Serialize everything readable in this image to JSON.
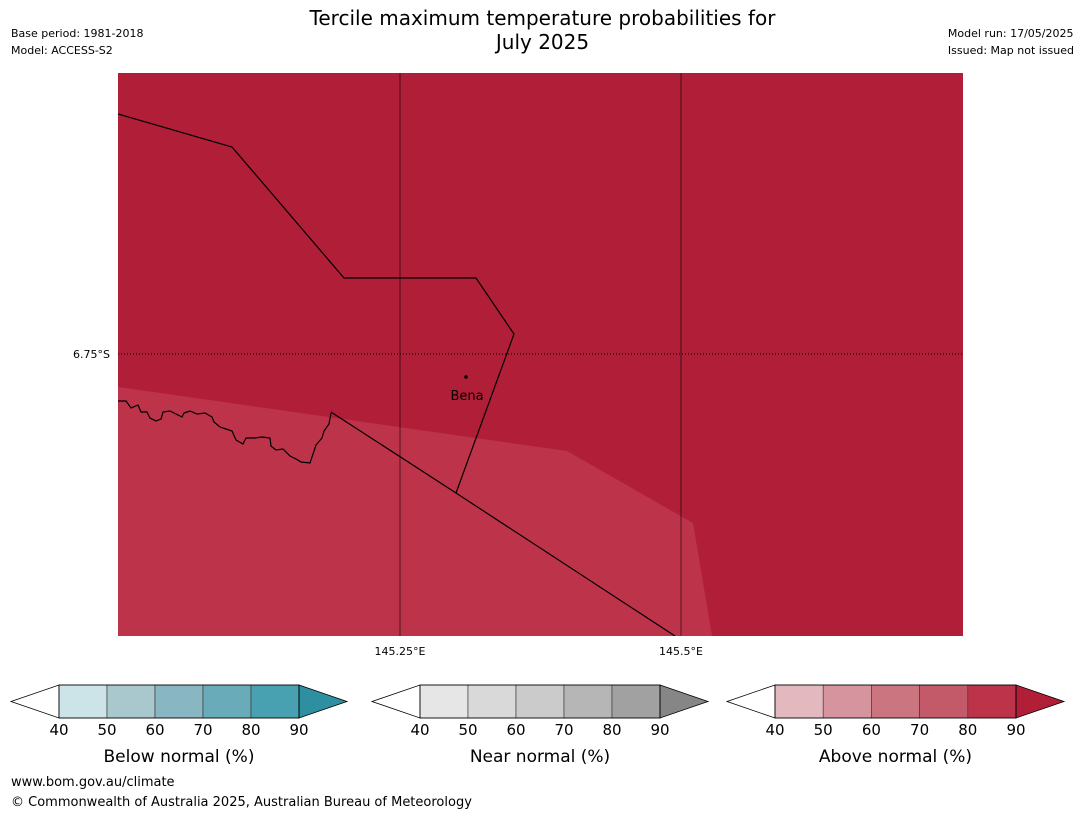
{
  "title_line1": "Tercile maximum temperature probabilities for",
  "title_line2": "July 2025",
  "meta_left": [
    "Base period: 1981-2018",
    "Model: ACCESS-S2"
  ],
  "meta_right": [
    "Model run: 17/05/2025",
    "Issued: Map not issued"
  ],
  "map": {
    "lat_label": "6.75°S",
    "lon_labels": [
      "145.25°E",
      "145.5°E"
    ],
    "place_name": "Bena",
    "colors": {
      "dark_red": "#b11e38",
      "medium_red": "#bd334a"
    }
  },
  "legends": [
    {
      "label": "Below normal (%)",
      "ticks": [
        "40",
        "50",
        "60",
        "70",
        "80",
        "90"
      ],
      "colors": [
        "#cce3e8",
        "#a8c8cd",
        "#88b6c2",
        "#6aabb9",
        "#47a1b0",
        "#2e8fa0"
      ]
    },
    {
      "label": "Near normal (%)",
      "ticks": [
        "40",
        "50",
        "60",
        "70",
        "80",
        "90"
      ],
      "colors": [
        "#e6e6e6",
        "#d9d9d9",
        "#cbcbcb",
        "#b6b6b6",
        "#a1a1a1",
        "#868686"
      ]
    },
    {
      "label": "Above normal (%)",
      "ticks": [
        "40",
        "50",
        "60",
        "70",
        "80",
        "90"
      ],
      "colors": [
        "#e3b8bf",
        "#d6959e",
        "#cb7580",
        "#c35a69",
        "#bd334a",
        "#b11e38"
      ]
    }
  ],
  "footer": {
    "url": "www.bom.gov.au/climate",
    "copyright": "© Commonwealth of Australia 2025, Australian Bureau of Meteorology"
  }
}
